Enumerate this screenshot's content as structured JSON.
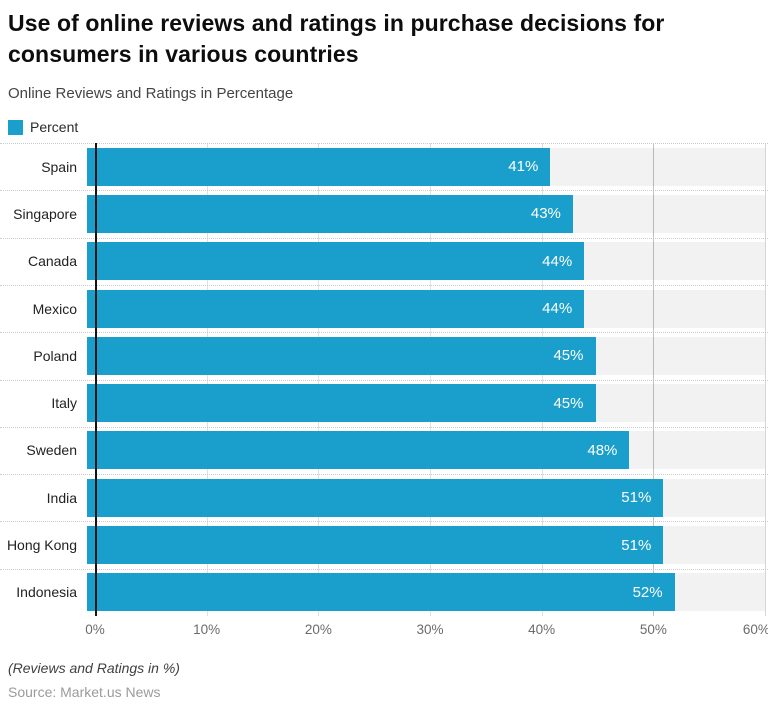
{
  "title": "Use of online reviews and ratings in purchase decisions for consumers in various countries",
  "subtitle": "Online Reviews and Ratings in Percentage",
  "legend": {
    "label": "Percent",
    "color": "#1a9fcd"
  },
  "chart_data": {
    "type": "bar",
    "orientation": "horizontal",
    "title": "Use of online reviews and ratings in purchase decisions for consumers in various countries",
    "subtitle": "Online Reviews and Ratings in Percentage",
    "categories": [
      "Spain",
      "Singapore",
      "Canada",
      "Mexico",
      "Poland",
      "Italy",
      "Sweden",
      "India",
      "Hong Kong",
      "Indonesia"
    ],
    "values": [
      41,
      43,
      44,
      44,
      45,
      45,
      48,
      51,
      51,
      52
    ],
    "value_labels": [
      "41%",
      "43%",
      "44%",
      "44%",
      "45%",
      "45%",
      "48%",
      "51%",
      "51%",
      "52%"
    ],
    "series_name": "Percent",
    "xlim": [
      0,
      60
    ],
    "x_ticks": [
      "0%",
      "10%",
      "20%",
      "30%",
      "40%",
      "50%",
      "60%"
    ],
    "x_tick_values": [
      0,
      10,
      20,
      30,
      40,
      50,
      60
    ],
    "xlabel": "",
    "ylabel": "",
    "grid": true,
    "legend_position": "top-left",
    "bar_color": "#1a9fcd",
    "track_color": "#f2f2f2",
    "major_gridline_at": 50
  },
  "footer": {
    "note": "(Reviews and Ratings in %)",
    "source": "Source: Market.us News"
  }
}
